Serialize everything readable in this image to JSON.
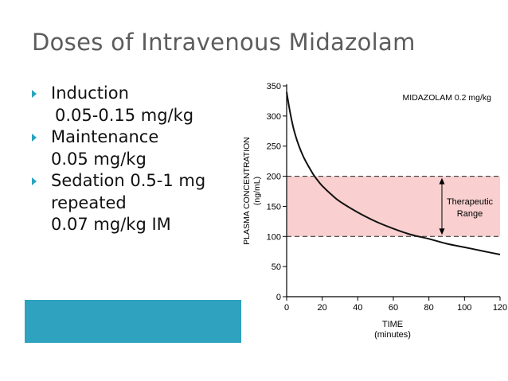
{
  "slide": {
    "title": "Doses of Intravenous Midazolam",
    "bullets": [
      {
        "label": "Induction",
        "detail": "0.05-0.15 mg/kg"
      },
      {
        "label": "Maintenance",
        "detail": "0.05 mg/kg"
      },
      {
        "label": "Sedation  0.5-1 mg",
        "detail": "repeated",
        "detail2": "0.07 mg/kg IM"
      }
    ],
    "colors": {
      "title": "#5c5c5c",
      "bullet_marker": "#2aa3c0",
      "teal_bar": "#2ea2bf"
    }
  },
  "chart_data": {
    "type": "line",
    "title": "MIDAZOLAM 0.2 mg/kg",
    "xlabel": "TIME",
    "xlabel2": "(minutes)",
    "ylabel": "PLASMA CONCENTRATION",
    "ylabel2": "(ng/mL)",
    "xlim": [
      0,
      120
    ],
    "ylim": [
      0,
      350
    ],
    "xticks": [
      0,
      20,
      40,
      60,
      80,
      100,
      120
    ],
    "yticks": [
      0,
      50,
      100,
      150,
      200,
      250,
      300,
      350
    ],
    "series": [
      {
        "name": "Midazolam 0.2 mg/kg",
        "x": [
          0,
          2,
          4,
          6,
          8,
          10,
          12,
          15,
          18,
          20,
          25,
          30,
          40,
          50,
          60,
          70,
          80,
          90,
          100,
          110,
          120
        ],
        "y": [
          340,
          305,
          278,
          258,
          242,
          229,
          218,
          203,
          191,
          184,
          170,
          158,
          140,
          125,
          113,
          103,
          96,
          88,
          82,
          76,
          70
        ]
      }
    ],
    "band": {
      "y0": 100,
      "y1": 200,
      "label": "Therapeutic",
      "label2": "Range",
      "color": "#f9cfcf"
    }
  }
}
